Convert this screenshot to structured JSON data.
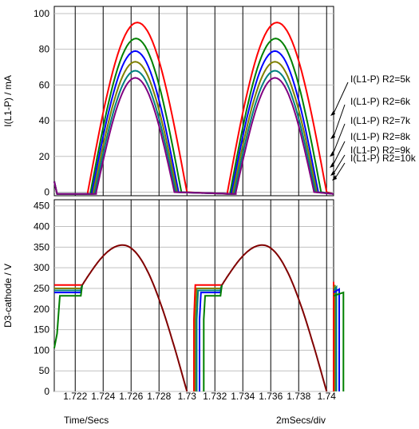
{
  "footer": {
    "x_label": "Time/Secs",
    "x_scale": "2mSecs/div"
  },
  "colors": {
    "red": "#ff0000",
    "green": "#008000",
    "blue": "#0000ff",
    "olive": "#808000",
    "teal": "#008080",
    "purple": "#800080",
    "maroon": "#800000",
    "grid": "#000000",
    "frame": "#000000"
  },
  "chart_data": [
    {
      "type": "line",
      "ylabel": "I(L1-P) / mA",
      "xlim": [
        1.7205,
        1.7405
      ],
      "ylim": [
        -2,
        104
      ],
      "yticks": [
        0,
        20,
        40,
        60,
        80,
        100
      ],
      "grid": true,
      "legend_placement": "right (arrow annotations)",
      "series": [
        {
          "name": "I(L1-P) R2=5k",
          "color": "#ff0000",
          "peak": 95,
          "x_zero_start": 1.7229,
          "x_zero_end": 1.73,
          "x_zero_start2": 1.7329,
          "x_zero_end2": 1.74
        },
        {
          "name": "I(L1-P) R2=6k",
          "color": "#008000",
          "peak": 86,
          "x_zero_start": 1.7231,
          "x_zero_end": 1.7296,
          "x_zero_start2": 1.7331,
          "x_zero_end2": 1.7396
        },
        {
          "name": "I(L1-P) R2=7k",
          "color": "#0000ff",
          "peak": 79,
          "x_zero_start": 1.7232,
          "x_zero_end": 1.7294,
          "x_zero_start2": 1.7332,
          "x_zero_end2": 1.7394
        },
        {
          "name": "I(L1-P) R2=8k",
          "color": "#808000",
          "peak": 73,
          "x_zero_start": 1.7233,
          "x_zero_end": 1.7293,
          "x_zero_start2": 1.7333,
          "x_zero_end2": 1.7393
        },
        {
          "name": "I(L1-P) R2=9k",
          "color": "#008080",
          "peak": 68,
          "x_zero_start": 1.7234,
          "x_zero_end": 1.7292,
          "x_zero_start2": 1.7334,
          "x_zero_end2": 1.7392
        },
        {
          "name": "I(L1-P) R2=10k",
          "color": "#800080",
          "peak": 64,
          "x_zero_start": 1.7235,
          "x_zero_end": 1.7291,
          "x_zero_start2": 1.7335,
          "x_zero_end2": 1.7391
        }
      ]
    },
    {
      "type": "line",
      "ylabel": "D3-cathode / V",
      "xlabel": "Time/Secs",
      "xlim": [
        1.7205,
        1.7405
      ],
      "ylim": [
        0,
        465
      ],
      "yticks": [
        0,
        50,
        100,
        150,
        200,
        250,
        300,
        350,
        400,
        450
      ],
      "xticks": [
        1.722,
        1.724,
        1.726,
        1.728,
        1.73,
        1.732,
        1.734,
        1.736,
        1.738,
        1.74
      ],
      "xtick_labels": [
        "1.722",
        "1.724",
        "1.726",
        "1.728",
        "1.73",
        "1.732",
        "1.734",
        "1.736",
        "1.738",
        "1.74"
      ],
      "grid": true,
      "common_curve": {
        "color": "#800000",
        "peak": 355,
        "x_peak": 1.7254,
        "x_peak2": 1.7354,
        "x_zero": 1.73,
        "x_zero2": 1.74
      },
      "series": [
        {
          "color": "#ff0000",
          "plateau": 258,
          "rise_start": 1.7305,
          "start_level": 258
        },
        {
          "color": "#808000",
          "plateau": 250,
          "rise_start": 1.7306,
          "start_level": 250
        },
        {
          "color": "#008080",
          "plateau": 245,
          "rise_start": 1.7307,
          "start_level": 245
        },
        {
          "color": "#0000ff",
          "plateau": 240,
          "rise_start": 1.7309,
          "start_level": 240
        },
        {
          "color": "#008000",
          "plateau": 232,
          "rise_start": 1.7312,
          "start_level": 105
        }
      ]
    }
  ]
}
